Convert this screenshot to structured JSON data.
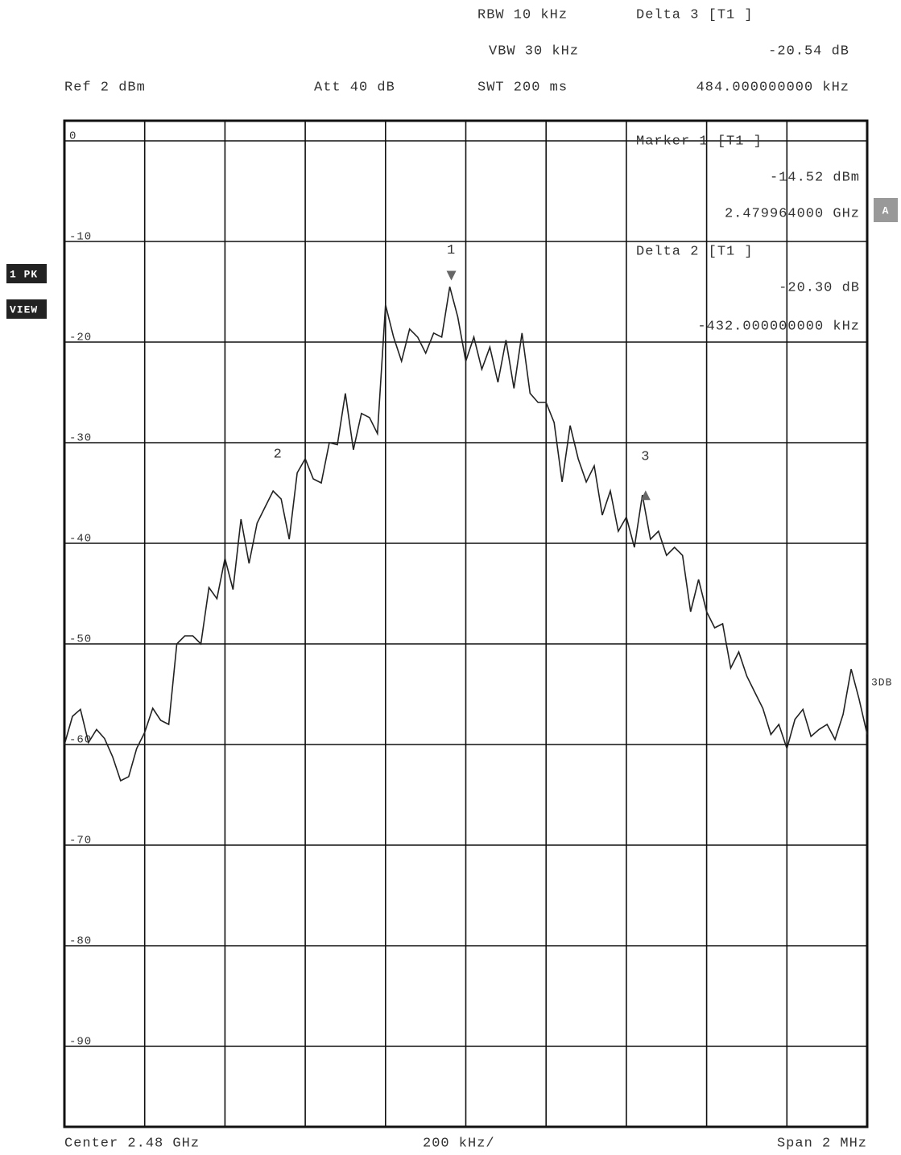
{
  "header": {
    "rbw": "RBW 10 kHz",
    "vbw": "VBW 30 kHz",
    "swt": "SWT 200 ms",
    "ref": "Ref 2 dBm",
    "att": "Att 40 dB"
  },
  "side_labels": {
    "trace": "1 PK",
    "mode": "VIEW",
    "a": "A",
    "db3": "3DB"
  },
  "footer": {
    "center": "Center 2.48 GHz",
    "div": "200 kHz/",
    "span": "Span 2 MHz"
  },
  "marker_info": [
    {
      "title": "Delta 3 [T1 ]",
      "level": "-20.54 dB",
      "freq": "484.000000000 kHz"
    },
    {
      "title": "Marker 1 [T1 ]",
      "level": "-14.52 dBm",
      "freq": "2.479964000 GHz"
    },
    {
      "title": "Delta 2 [T1 ]",
      "level": "-20.30 dB",
      "freq": "-432.000000000 kHz"
    }
  ],
  "chart_data": {
    "type": "line",
    "color": "#222",
    "xlim": [
      2.479,
      2.481
    ],
    "xticks": [
      2.479,
      2.4792,
      2.4794,
      2.4796,
      2.4798,
      2.48,
      2.4802,
      2.4804,
      2.4806,
      2.4808,
      2.481
    ],
    "ylim": [
      -98,
      2
    ],
    "yticks": [
      0,
      -10,
      -20,
      -30,
      -40,
      -50,
      -60,
      -70,
      -80,
      -90
    ],
    "grid": true,
    "x": [
      2.479,
      2.47902,
      2.47904,
      2.47906,
      2.47908,
      2.4791,
      2.47912,
      2.47914,
      2.47916,
      2.47918,
      2.4792,
      2.47922,
      2.47924,
      2.47926,
      2.47928,
      2.4793,
      2.47932,
      2.47934,
      2.47936,
      2.47938,
      2.4794,
      2.47942,
      2.47944,
      2.47946,
      2.47948,
      2.4795,
      2.47952,
      2.47954,
      2.47956,
      2.47958,
      2.4796,
      2.47962,
      2.47964,
      2.47966,
      2.47968,
      2.4797,
      2.47972,
      2.47974,
      2.47976,
      2.47978,
      2.4798,
      2.47982,
      2.47984,
      2.47986,
      2.47988,
      2.4799,
      2.47992,
      2.47994,
      2.47996,
      2.47998,
      2.48,
      2.48002,
      2.48004,
      2.48006,
      2.48008,
      2.4801,
      2.48012,
      2.48014,
      2.48016,
      2.48018,
      2.4802,
      2.48022,
      2.48024,
      2.48026,
      2.48028,
      2.4803,
      2.48032,
      2.48034,
      2.48036,
      2.48038,
      2.4804,
      2.48042,
      2.48044,
      2.48046,
      2.48048,
      2.4805,
      2.48052,
      2.48054,
      2.48056,
      2.48058,
      2.4806,
      2.48062,
      2.48064,
      2.48066,
      2.48068,
      2.4807,
      2.48072,
      2.48074,
      2.48076,
      2.48078,
      2.4808,
      2.48082,
      2.48084,
      2.48086,
      2.48088,
      2.4809,
      2.48092,
      2.48094,
      2.48096,
      2.48098,
      2.481
    ],
    "values": [
      -60,
      -57.2,
      -56.5,
      -59.8,
      -58.5,
      -59.4,
      -61.2,
      -63.6,
      -63.2,
      -60.4,
      -58.8,
      -56.4,
      -57.6,
      -58,
      -50,
      -49.2,
      -49.2,
      -50,
      -44.4,
      -45.5,
      -41.5,
      -44.6,
      -37.6,
      -42,
      -38,
      -36.4,
      -34.8,
      -35.6,
      -39.6,
      -33,
      -31.6,
      -33.6,
      -34,
      -30,
      -30.2,
      -25.1,
      -30.7,
      -27.1,
      -27.5,
      -29.1,
      -16.3,
      -19.5,
      -21.9,
      -18.7,
      -19.5,
      -21.1,
      -19.1,
      -19.5,
      -14.5,
      -17.5,
      -21.9,
      -19.5,
      -22.7,
      -20.5,
      -24,
      -19.8,
      -24.6,
      -19.1,
      -25.1,
      -26,
      -26,
      -28,
      -33.9,
      -28.3,
      -31.6,
      -33.9,
      -32.3,
      -37.2,
      -34.8,
      -38.8,
      -37.4,
      -40.4,
      -35.2,
      -39.6,
      -38.8,
      -41.2,
      -40.4,
      -41.2,
      -46.8,
      -43.6,
      -46.8,
      -48.4,
      -48,
      -52.4,
      -50.8,
      -53.2,
      -54.8,
      -56.4,
      -59,
      -58,
      -60.4,
      -57.5,
      -56.5,
      -59.2,
      -58.5,
      -58,
      -59.5,
      -57,
      -52.5,
      -55.5,
      -59
    ],
    "markers": [
      {
        "label": "1",
        "x": 2.479964,
        "y": -14.52,
        "symbol": "down"
      },
      {
        "label": "2",
        "x": 2.479532,
        "y": -34.82
      },
      {
        "label": "3",
        "x": 2.480448,
        "y": -35.06,
        "symbol": "up"
      }
    ]
  }
}
